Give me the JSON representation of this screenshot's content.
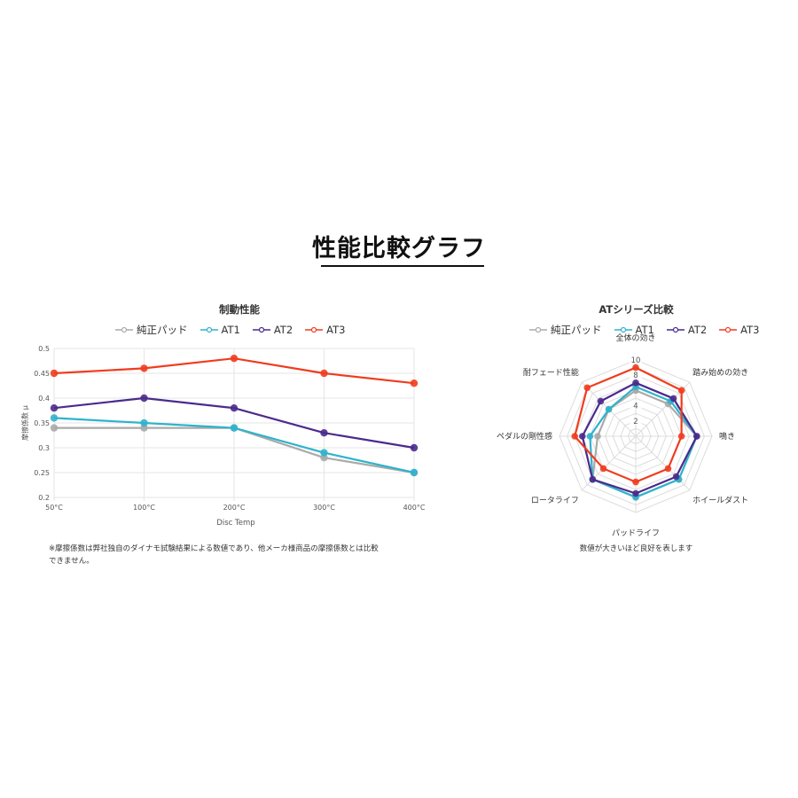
{
  "page": {
    "title": "性能比較グラフ"
  },
  "series_colors": {
    "純正パッド": "#aaaaaa",
    "AT1": "#2fb3cc",
    "AT2": "#4b2a8c",
    "AT3": "#f03c1e"
  },
  "line_chart": {
    "title": "制動性能",
    "legend": [
      "純正パッド",
      "AT1",
      "AT2",
      "AT3"
    ],
    "xlabel": "Disc Temp",
    "ylabel": "摩擦係数 μ",
    "note": "※摩擦係数は弊社独自のダイナモ試験結果による数値であり、他メーカ様商品の摩擦係数とは比較できません。",
    "note_line1": "※摩擦係数は弊社独自のダイナモ試験結果による数値であり、他メーカ様商品の摩擦係数とは比較",
    "note_line2": "できません。"
  },
  "radar_chart": {
    "title": "ATシリーズ比較",
    "legend": [
      "純正パッド",
      "AT1",
      "AT2",
      "AT3"
    ],
    "note": "数値が大きいほど良好を表します"
  },
  "chart_data": [
    {
      "type": "line",
      "title": "制動性能",
      "xlabel": "Disc Temp",
      "ylabel": "摩擦係数 μ",
      "x": [
        "50°C",
        "100°C",
        "200°C",
        "300°C",
        "400°C"
      ],
      "ylim": [
        0.2,
        0.5
      ],
      "yticks": [
        0.2,
        0.25,
        0.3,
        0.35,
        0.4,
        0.45,
        0.5
      ],
      "grid": true,
      "legend_position": "top",
      "series": [
        {
          "name": "純正パッド",
          "values": [
            0.34,
            0.34,
            0.34,
            0.28,
            0.25
          ]
        },
        {
          "name": "AT1",
          "values": [
            0.36,
            0.35,
            0.34,
            0.29,
            0.25
          ]
        },
        {
          "name": "AT2",
          "values": [
            0.38,
            0.4,
            0.38,
            0.33,
            0.3
          ]
        },
        {
          "name": "AT3",
          "values": [
            0.45,
            0.46,
            0.48,
            0.45,
            0.43
          ]
        }
      ]
    },
    {
      "type": "radar",
      "title": "ATシリーズ比較",
      "axes": [
        "全体の効き",
        "踏み始めの効き",
        "鳴き",
        "ホイールダスト",
        "パッドライフ",
        "ロータライフ",
        "ペダルの剛性感",
        "耐フェード性能"
      ],
      "rlim": [
        0,
        10
      ],
      "rticks": [
        2,
        4,
        6,
        8,
        10
      ],
      "legend_position": "top",
      "annotation": "数値が大きいほど良好を表します",
      "series": [
        {
          "name": "純正パッド",
          "values": [
            6,
            6,
            8,
            8,
            8,
            8,
            5,
            5
          ]
        },
        {
          "name": "AT1",
          "values": [
            6.5,
            6.5,
            8,
            8,
            8,
            8,
            6,
            5
          ]
        },
        {
          "name": "AT2",
          "values": [
            7,
            7,
            8,
            7.5,
            7.5,
            8,
            7,
            6.5
          ]
        },
        {
          "name": "AT3",
          "values": [
            9,
            8.5,
            6,
            6,
            6,
            6,
            8,
            9
          ]
        }
      ]
    }
  ]
}
